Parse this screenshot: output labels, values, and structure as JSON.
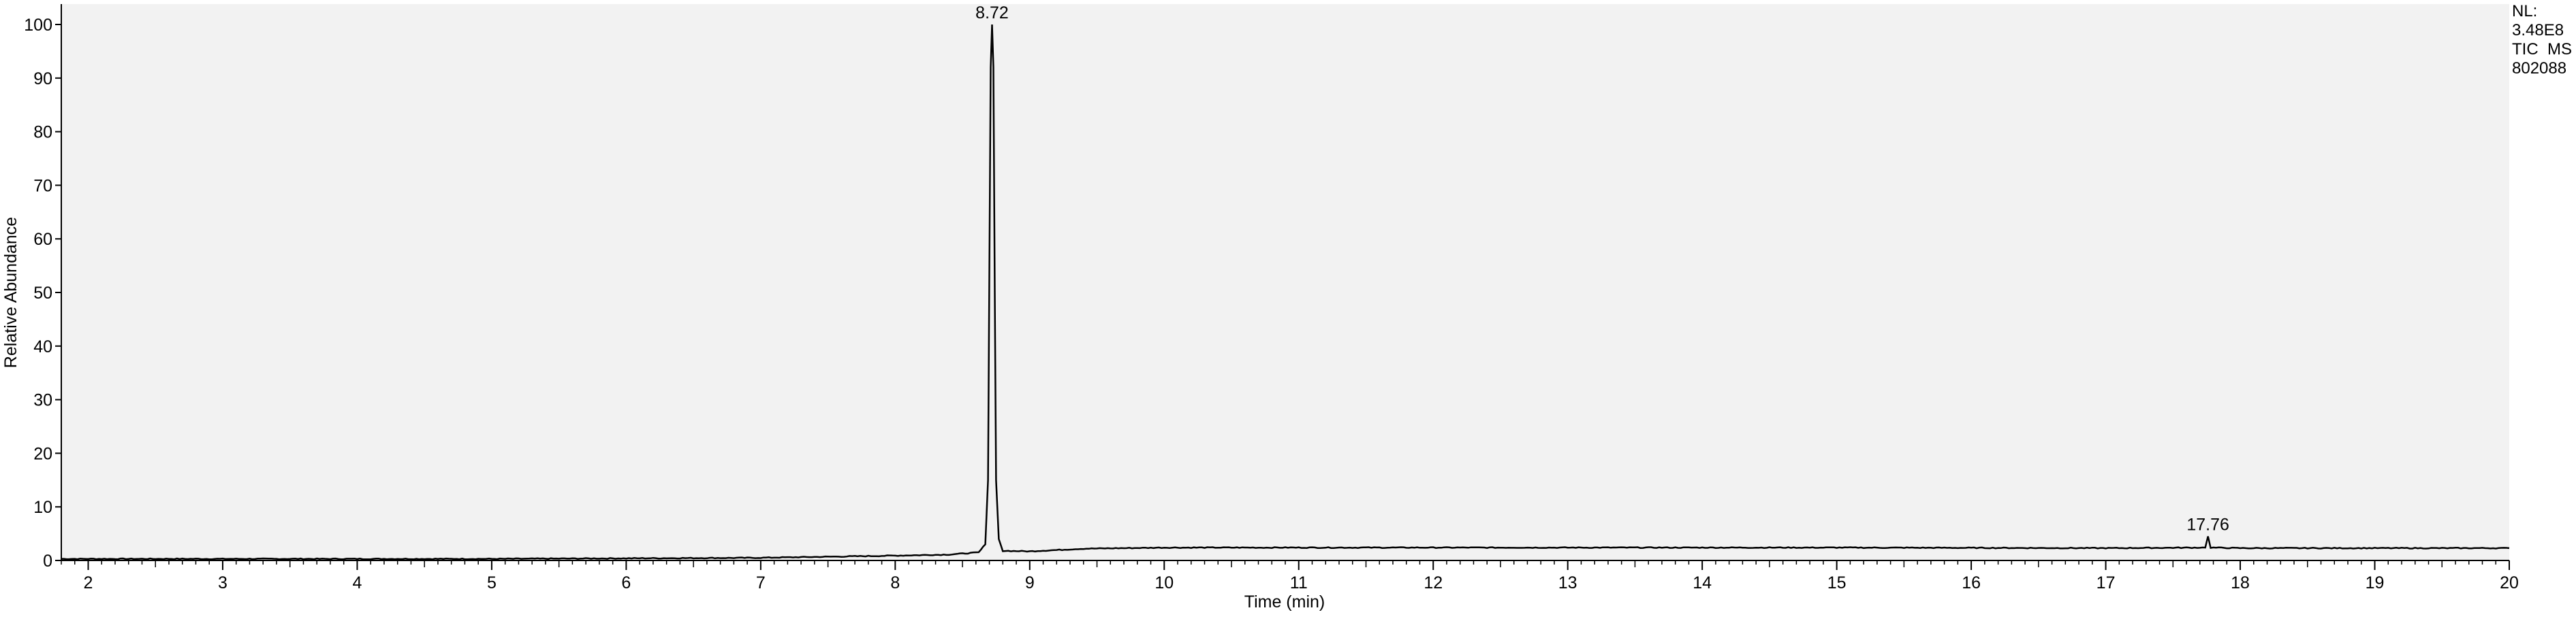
{
  "chart_data": {
    "type": "line",
    "xlabel": "Time (min)",
    "ylabel": "Relative Abundance",
    "xlim": [
      1.8,
      20
    ],
    "ylim": [
      0,
      100
    ],
    "x_ticks": [
      2,
      3,
      4,
      5,
      6,
      7,
      8,
      9,
      10,
      11,
      12,
      13,
      14,
      15,
      16,
      17,
      18,
      19,
      20
    ],
    "y_ticks": [
      0,
      10,
      20,
      30,
      40,
      50,
      60,
      70,
      80,
      90,
      100
    ],
    "peaks": [
      {
        "time": 8.72,
        "label": "8.72",
        "abundance": 100
      },
      {
        "time": 17.76,
        "label": "17.76",
        "abundance": 4.5
      }
    ],
    "trace": [
      [
        1.8,
        0.3
      ],
      [
        3,
        0.3
      ],
      [
        5,
        0.3
      ],
      [
        6,
        0.4
      ],
      [
        7,
        0.5
      ],
      [
        7.5,
        0.7
      ],
      [
        8,
        0.9
      ],
      [
        8.4,
        1.1
      ],
      [
        8.62,
        1.5
      ],
      [
        8.67,
        3
      ],
      [
        8.69,
        15
      ],
      [
        8.7,
        55
      ],
      [
        8.71,
        92
      ],
      [
        8.72,
        100
      ],
      [
        8.73,
        92
      ],
      [
        8.74,
        50
      ],
      [
        8.75,
        15
      ],
      [
        8.77,
        4
      ],
      [
        8.8,
        1.8
      ],
      [
        9,
        1.7
      ],
      [
        9.4,
        2.2
      ],
      [
        10,
        2.4
      ],
      [
        12,
        2.4
      ],
      [
        15,
        2.4
      ],
      [
        17,
        2.3
      ],
      [
        17.74,
        2.4
      ],
      [
        17.76,
        4.5
      ],
      [
        17.78,
        2.4
      ],
      [
        18,
        2.3
      ],
      [
        20,
        2.3
      ]
    ],
    "nl_label": "NL:",
    "nl_value": "3.48E8",
    "trace_type": "TIC  MS",
    "sample": "802088"
  }
}
